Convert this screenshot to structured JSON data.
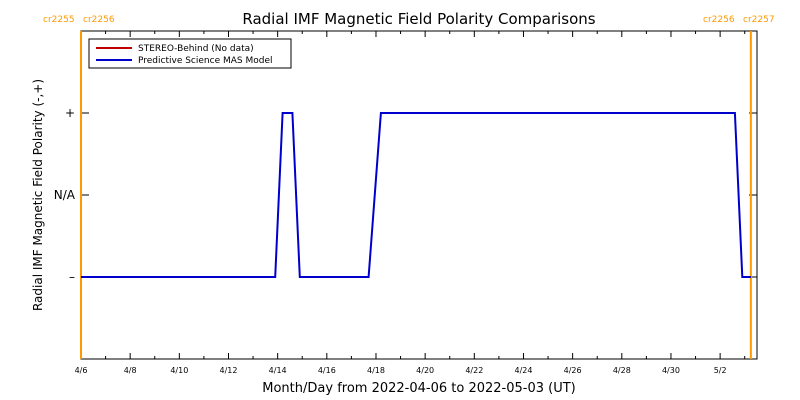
{
  "chart_data": {
    "type": "line",
    "title": "Radial IMF Magnetic Field Polarity Comparisons",
    "xlabel": "Month/Day from 2022-04-06 to 2022-05-03 (UT)",
    "ylabel": "Radial IMF Magnetic Field Polarity (-,+)",
    "x_ticks": [
      "4/6",
      "4/8",
      "4/10",
      "4/12",
      "4/14",
      "4/16",
      "4/18",
      "4/20",
      "4/22",
      "4/24",
      "4/26",
      "4/28",
      "4/30",
      "5/2"
    ],
    "y_ticks": [
      "+",
      "N/A",
      "–"
    ],
    "y_tick_values": [
      1,
      0,
      -1
    ],
    "ylim": [
      -2,
      2
    ],
    "xlim_days": [
      0,
      27.5
    ],
    "legend_position": "top-left",
    "carrington_markers": [
      {
        "day": 0,
        "left_label": "cr2255",
        "right_label": "cr2256",
        "color": "#ff9900"
      },
      {
        "day": 27.25,
        "left_label": "cr2256",
        "right_label": "cr2257",
        "color": "#ff9900"
      }
    ],
    "series": [
      {
        "name": "STEREO-Behind (No data)",
        "color": "#c00000",
        "x": [],
        "y": []
      },
      {
        "name": "Predictive Science MAS Model",
        "color": "#0000cc",
        "x": [
          0,
          7.9,
          8.2,
          8.6,
          8.9,
          11.7,
          12.2,
          26.6,
          26.9,
          27.25
        ],
        "y": [
          -1,
          -1,
          1,
          1,
          -1,
          -1,
          1,
          1,
          -1,
          -1
        ]
      }
    ]
  }
}
